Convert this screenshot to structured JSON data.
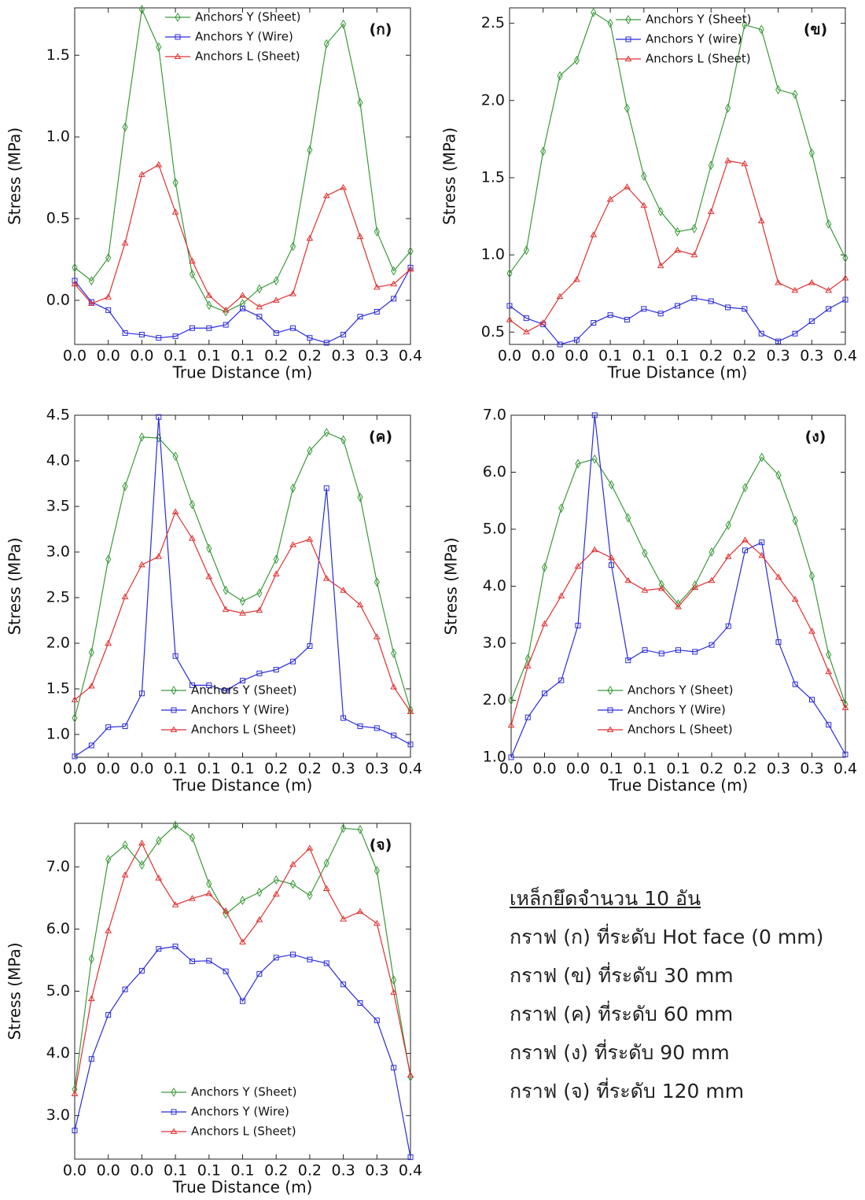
{
  "chart_data": [
    {
      "type": "line",
      "title": "(ก)",
      "x_label": "True Distance (m)",
      "y_label": "Stress (MPa)",
      "legend": "upper left",
      "x": [
        0,
        0.02,
        0.04,
        0.06,
        0.08,
        0.1,
        0.12,
        0.14,
        0.16,
        0.18,
        0.2,
        0.22,
        0.24,
        0.26,
        0.28,
        0.3,
        0.32,
        0.34,
        0.36,
        0.38,
        0.4
      ],
      "xlim": [
        0,
        0.4
      ],
      "xticks": [
        {
          "value": 0,
          "label": "0.0"
        },
        {
          "value": 0.04,
          "label": "0.0"
        },
        {
          "value": 0.08,
          "label": "0.0"
        },
        {
          "value": 0.12,
          "label": "0.1"
        },
        {
          "value": 0.16,
          "label": "0.1"
        },
        {
          "value": 0.2,
          "label": "0.1"
        },
        {
          "value": 0.24,
          "label": "0.2"
        },
        {
          "value": 0.28,
          "label": "0.2"
        },
        {
          "value": 0.32,
          "label": "0.3"
        },
        {
          "value": 0.36,
          "label": "0.3"
        },
        {
          "value": 0.4,
          "label": "0.4"
        }
      ],
      "ylim": [
        -0.27,
        1.79
      ],
      "yticks": [
        {
          "value": 0,
          "label": "0.0"
        },
        0.5,
        {
          "value": 1,
          "label": "1.0"
        },
        1.5
      ],
      "series": [
        {
          "name": "Anchors Y (Sheet)",
          "color": "#3a9a3a",
          "marker": "diamond",
          "values": [
            0.2,
            0.12,
            0.26,
            1.06,
            1.78,
            1.55,
            0.72,
            0.16,
            -0.03,
            -0.07,
            -0.02,
            0.07,
            0.12,
            0.33,
            0.92,
            1.57,
            1.69,
            1.21,
            0.42,
            0.18,
            0.3
          ]
        },
        {
          "name": "Anchors Y (Wire)",
          "color": "#2b2bdc",
          "marker": "square",
          "values": [
            0.12,
            -0.01,
            -0.06,
            -0.2,
            -0.21,
            -0.23,
            -0.22,
            -0.17,
            -0.17,
            -0.15,
            -0.05,
            -0.1,
            -0.2,
            -0.17,
            -0.23,
            -0.26,
            -0.21,
            -0.1,
            -0.07,
            0.01,
            0.2
          ]
        },
        {
          "name": "Anchors L (Sheet)",
          "color": "#e03030",
          "marker": "triangle",
          "values": [
            0.1,
            -0.02,
            0.02,
            0.35,
            0.77,
            0.83,
            0.54,
            0.24,
            0.03,
            -0.06,
            0.03,
            -0.04,
            0,
            0.04,
            0.38,
            0.64,
            0.69,
            0.39,
            0.08,
            0.1,
            0.19
          ]
        }
      ]
    },
    {
      "type": "line",
      "title": "(ข)",
      "x_label": "True Distance (m)",
      "y_label": "Stress (MPa)",
      "legend": "upper center",
      "x": [
        0,
        0.02,
        0.04,
        0.06,
        0.08,
        0.1,
        0.12,
        0.14,
        0.16,
        0.18,
        0.2,
        0.22,
        0.24,
        0.26,
        0.28,
        0.3,
        0.32,
        0.34,
        0.36,
        0.38,
        0.4
      ],
      "xlim": [
        0,
        0.4
      ],
      "xticks": [
        {
          "value": 0,
          "label": "0.0"
        },
        {
          "value": 0.04,
          "label": "0.0"
        },
        {
          "value": 0.08,
          "label": "0.0"
        },
        {
          "value": 0.12,
          "label": "0.1"
        },
        {
          "value": 0.16,
          "label": "0.1"
        },
        {
          "value": 0.2,
          "label": "0.1"
        },
        {
          "value": 0.24,
          "label": "0.2"
        },
        {
          "value": 0.28,
          "label": "0.2"
        },
        {
          "value": 0.32,
          "label": "0.3"
        },
        {
          "value": 0.36,
          "label": "0.3"
        },
        {
          "value": 0.4,
          "label": "0.4"
        }
      ],
      "ylim": [
        0.42,
        2.6
      ],
      "yticks": [
        0.5,
        {
          "value": 1,
          "label": "1.0"
        },
        1.5,
        {
          "value": 2,
          "label": "2.0"
        },
        2.5
      ],
      "series": [
        {
          "name": "Anchors Y (Sheet)",
          "color": "#3a9a3a",
          "marker": "diamond",
          "values": [
            0.88,
            1.03,
            1.67,
            2.16,
            2.26,
            2.57,
            2.5,
            1.95,
            1.51,
            1.28,
            1.15,
            1.17,
            1.58,
            1.95,
            2.49,
            2.46,
            2.07,
            2.04,
            1.66,
            1.2,
            0.98
          ]
        },
        {
          "name": "Anchors Y (wire)",
          "color": "#2b2bdc",
          "marker": "square",
          "values": [
            0.67,
            0.59,
            0.55,
            0.42,
            0.45,
            0.56,
            0.61,
            0.58,
            0.65,
            0.62,
            0.67,
            0.72,
            0.7,
            0.66,
            0.65,
            0.49,
            0.44,
            0.49,
            0.57,
            0.65,
            0.71
          ]
        },
        {
          "name": "Anchors L (Sheet)",
          "color": "#e03030",
          "marker": "triangle",
          "values": [
            0.58,
            0.5,
            0.56,
            0.73,
            0.84,
            1.13,
            1.36,
            1.44,
            1.32,
            0.93,
            1.03,
            1.0,
            1.28,
            1.61,
            1.59,
            1.22,
            0.82,
            0.77,
            0.82,
            0.77,
            0.85
          ]
        }
      ]
    },
    {
      "type": "line",
      "title": "(ค)",
      "x_label": "True Distance (m)",
      "y_label": "Stress (MPa)",
      "legend": "lower left",
      "x": [
        0,
        0.02,
        0.04,
        0.06,
        0.08,
        0.1,
        0.12,
        0.14,
        0.16,
        0.18,
        0.2,
        0.22,
        0.24,
        0.26,
        0.28,
        0.3,
        0.32,
        0.34,
        0.36,
        0.38,
        0.4
      ],
      "xlim": [
        0,
        0.4
      ],
      "xticks": [
        {
          "value": 0,
          "label": "0.0"
        },
        {
          "value": 0.04,
          "label": "0.0"
        },
        {
          "value": 0.08,
          "label": "0.0"
        },
        {
          "value": 0.12,
          "label": "0.1"
        },
        {
          "value": 0.16,
          "label": "0.1"
        },
        {
          "value": 0.2,
          "label": "0.1"
        },
        {
          "value": 0.24,
          "label": "0.2"
        },
        {
          "value": 0.28,
          "label": "0.2"
        },
        {
          "value": 0.32,
          "label": "0.3"
        },
        {
          "value": 0.36,
          "label": "0.3"
        },
        {
          "value": 0.4,
          "label": "0.4"
        }
      ],
      "ylim": [
        0.75,
        4.5
      ],
      "yticks": [
        {
          "value": 1,
          "label": "1.0"
        },
        1.5,
        {
          "value": 2,
          "label": "2.0"
        },
        2.5,
        {
          "value": 3,
          "label": "3.0"
        },
        3.5,
        {
          "value": 4,
          "label": "4.0"
        },
        4.5
      ],
      "series": [
        {
          "name": "Anchors Y (Sheet)",
          "color": "#3a9a3a",
          "marker": "diamond",
          "values": [
            1.18,
            1.9,
            2.92,
            3.72,
            4.26,
            4.25,
            4.05,
            3.52,
            3.04,
            2.58,
            2.46,
            2.55,
            2.92,
            3.7,
            4.11,
            4.31,
            4.23,
            3.6,
            2.67,
            1.89,
            1.27
          ]
        },
        {
          "name": "Anchors Y (Wire)",
          "color": "#2b2bdc",
          "marker": "square",
          "values": [
            0.76,
            0.88,
            1.08,
            1.09,
            1.45,
            4.48,
            1.86,
            1.54,
            1.54,
            1.48,
            1.59,
            1.67,
            1.71,
            1.8,
            1.97,
            3.7,
            1.18,
            1.09,
            1.07,
            0.99,
            0.89
          ]
        },
        {
          "name": "Anchors L (Sheet)",
          "color": "#e03030",
          "marker": "triangle",
          "values": [
            1.38,
            1.53,
            2.0,
            2.51,
            2.86,
            2.95,
            3.44,
            3.15,
            2.73,
            2.37,
            2.33,
            2.36,
            2.76,
            3.08,
            3.14,
            2.71,
            2.58,
            2.42,
            2.07,
            1.52,
            1.25
          ]
        }
      ]
    },
    {
      "type": "line",
      "title": "(ง)",
      "x_label": "True Distance (m)",
      "y_label": "Stress (MPa)",
      "legend": "lower left",
      "x": [
        0,
        0.02,
        0.04,
        0.06,
        0.08,
        0.1,
        0.12,
        0.14,
        0.16,
        0.18,
        0.2,
        0.22,
        0.24,
        0.26,
        0.28,
        0.3,
        0.32,
        0.34,
        0.36,
        0.38,
        0.4
      ],
      "xlim": [
        0,
        0.4
      ],
      "xticks": [
        {
          "value": 0,
          "label": "0.0"
        },
        {
          "value": 0.04,
          "label": "0.0"
        },
        {
          "value": 0.08,
          "label": "0.0"
        },
        {
          "value": 0.12,
          "label": "0.1"
        },
        {
          "value": 0.16,
          "label": "0.1"
        },
        {
          "value": 0.2,
          "label": "0.1"
        },
        {
          "value": 0.24,
          "label": "0.2"
        },
        {
          "value": 0.28,
          "label": "0.2"
        },
        {
          "value": 0.32,
          "label": "0.3"
        },
        {
          "value": 0.36,
          "label": "0.3"
        },
        {
          "value": 0.4,
          "label": "0.4"
        }
      ],
      "ylim": [
        1.0,
        7.0
      ],
      "yticks": [
        {
          "value": 1,
          "label": "1.0"
        },
        {
          "value": 2,
          "label": "2.0"
        },
        {
          "value": 3,
          "label": "3.0"
        },
        {
          "value": 4,
          "label": "4.0"
        },
        {
          "value": 5,
          "label": "5.0"
        },
        {
          "value": 6,
          "label": "6.0"
        },
        {
          "value": 7,
          "label": "7.0"
        }
      ],
      "series": [
        {
          "name": "Anchors Y (Sheet)",
          "color": "#3a9a3a",
          "marker": "diamond",
          "values": [
            2.0,
            2.73,
            4.33,
            5.37,
            6.15,
            6.23,
            5.78,
            5.2,
            4.58,
            4.03,
            3.69,
            4.02,
            4.6,
            5.07,
            5.73,
            6.26,
            5.95,
            5.15,
            4.18,
            2.8,
            1.93
          ]
        },
        {
          "name": "Anchors Y (Wire)",
          "color": "#2b2bdc",
          "marker": "square",
          "values": [
            1.0,
            1.7,
            2.12,
            2.35,
            3.31,
            7.0,
            4.37,
            2.7,
            2.88,
            2.82,
            2.88,
            2.85,
            2.97,
            3.3,
            4.63,
            4.77,
            3.02,
            2.28,
            2.01,
            1.57,
            1.05
          ]
        },
        {
          "name": "Anchors L (Sheet)",
          "color": "#e03030",
          "marker": "triangle",
          "values": [
            1.56,
            2.6,
            3.34,
            3.83,
            4.35,
            4.64,
            4.5,
            4.1,
            3.93,
            3.96,
            3.64,
            3.98,
            4.1,
            4.52,
            4.81,
            4.54,
            4.16,
            3.77,
            3.21,
            2.5,
            1.87
          ]
        }
      ]
    },
    {
      "type": "line",
      "title": "(จ)",
      "x_label": "True Distance (m)",
      "y_label": "Stress (MPa)",
      "legend": "lower left",
      "x": [
        0,
        0.02,
        0.04,
        0.06,
        0.08,
        0.1,
        0.12,
        0.14,
        0.16,
        0.18,
        0.2,
        0.22,
        0.24,
        0.26,
        0.28,
        0.3,
        0.32,
        0.34,
        0.36,
        0.38,
        0.4
      ],
      "xlim": [
        0,
        0.4
      ],
      "xticks": [
        {
          "value": 0,
          "label": "0.0"
        },
        {
          "value": 0.04,
          "label": "0.0"
        },
        {
          "value": 0.08,
          "label": "0.0"
        },
        {
          "value": 0.12,
          "label": "0.1"
        },
        {
          "value": 0.16,
          "label": "0.1"
        },
        {
          "value": 0.2,
          "label": "0.1"
        },
        {
          "value": 0.24,
          "label": "0.2"
        },
        {
          "value": 0.28,
          "label": "0.2"
        },
        {
          "value": 0.32,
          "label": "0.3"
        },
        {
          "value": 0.36,
          "label": "0.3"
        },
        {
          "value": 0.4,
          "label": "0.4"
        }
      ],
      "ylim": [
        2.3,
        7.7
      ],
      "yticks": [
        {
          "value": 3,
          "label": "3.0"
        },
        {
          "value": 4,
          "label": "4.0"
        },
        {
          "value": 5,
          "label": "5.0"
        },
        {
          "value": 6,
          "label": "6.0"
        },
        {
          "value": 7,
          "label": "7.0"
        }
      ],
      "series": [
        {
          "name": "Anchors Y (Sheet)",
          "color": "#3a9a3a",
          "marker": "diamond",
          "values": [
            3.42,
            5.52,
            7.12,
            7.35,
            7.03,
            7.42,
            7.67,
            7.47,
            6.73,
            6.24,
            6.46,
            6.59,
            6.79,
            6.72,
            6.54,
            7.06,
            7.62,
            7.6,
            6.94,
            5.18,
            3.62
          ]
        },
        {
          "name": "Anchors Y (Wire)",
          "color": "#2b2bdc",
          "marker": "square",
          "values": [
            2.76,
            3.91,
            4.62,
            5.03,
            5.33,
            5.68,
            5.72,
            5.48,
            5.49,
            5.32,
            4.84,
            5.28,
            5.54,
            5.59,
            5.51,
            5.45,
            5.11,
            4.81,
            4.53,
            3.77,
            2.33
          ]
        },
        {
          "name": "Anchors L (Sheet)",
          "color": "#e03030",
          "marker": "triangle",
          "values": [
            3.35,
            4.88,
            5.97,
            6.87,
            7.38,
            6.82,
            6.39,
            6.49,
            6.57,
            6.29,
            5.79,
            6.15,
            6.56,
            7.04,
            7.3,
            6.65,
            6.16,
            6.28,
            6.09,
            4.98,
            3.65
          ]
        }
      ]
    }
  ],
  "caption": {
    "heading": "เหล็กยึดจำนวน 10 อัน",
    "lines": [
      "กราฟ (ก) ที่ระดับ Hot face (0 mm)",
      "กราฟ (ข) ที่ระดับ 30 mm",
      "กราฟ (ค) ที่ระดับ 60 mm",
      "กราฟ (ง) ที่ระดับ 90 mm",
      "กราฟ (จ) ที่ระดับ 120 mm"
    ]
  }
}
